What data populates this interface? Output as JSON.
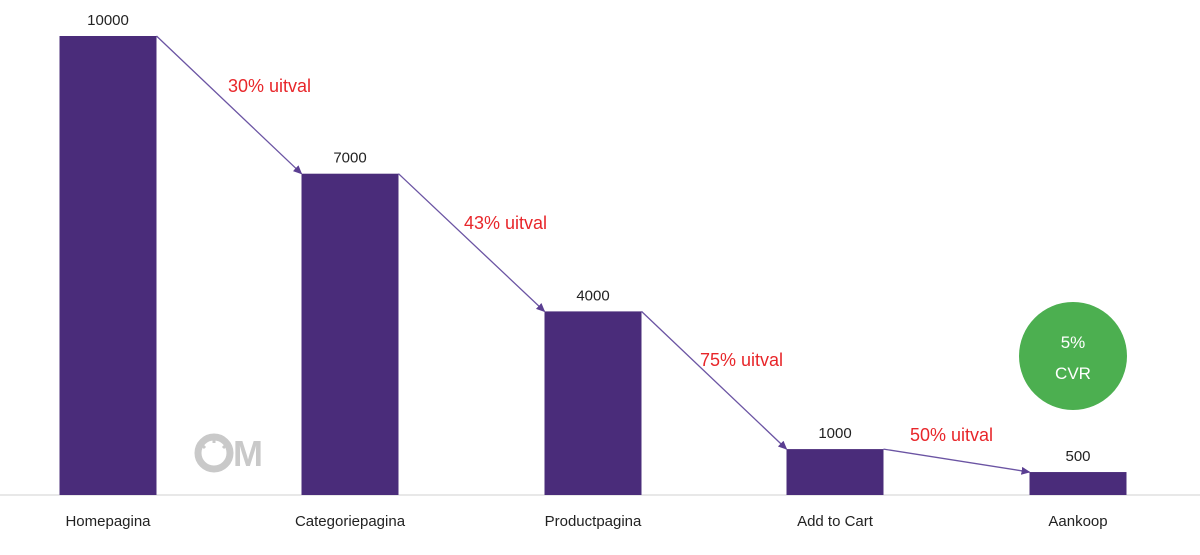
{
  "chart_data": {
    "type": "bar",
    "categories": [
      "Homepagina",
      "Categoriepagina",
      "Productpagina",
      "Add to Cart",
      "Aankoop"
    ],
    "values": [
      10000,
      7000,
      4000,
      1000,
      500
    ],
    "ylim": [
      0,
      10000
    ],
    "grid": false,
    "legend": "none",
    "annotations": [
      "30% uitval",
      "43% uitval",
      "75% uitval",
      "50% uitval"
    ],
    "badge": {
      "line1": "5%",
      "line2": "CVR"
    },
    "logo_text": "M"
  },
  "colors": {
    "bar": "#4a2c7a",
    "connector": "#6b54a3",
    "drop_text": "#e8262a",
    "badge_fill": "#4caf50",
    "axis": "#d0d0d0",
    "logo": "#c9c9c9"
  }
}
